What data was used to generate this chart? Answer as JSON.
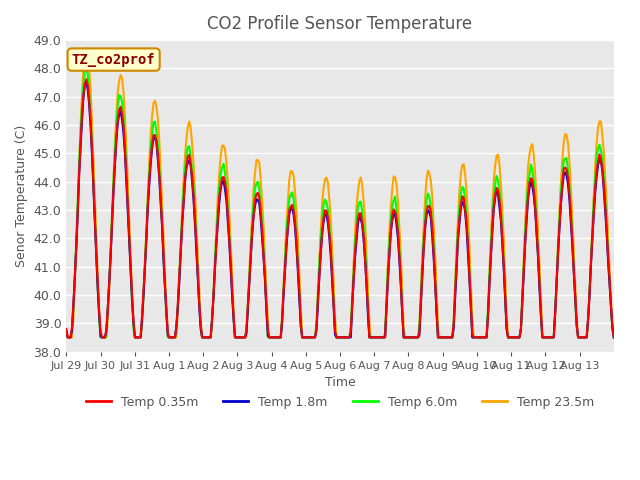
{
  "title": "CO2 Profile Sensor Temperature",
  "ylabel": "Senor Temperature (C)",
  "xlabel": "Time",
  "ylim": [
    38.0,
    49.0
  ],
  "yticks": [
    38.0,
    39.0,
    40.0,
    41.0,
    42.0,
    43.0,
    44.0,
    45.0,
    46.0,
    47.0,
    48.0,
    49.0
  ],
  "xtick_labels": [
    "Jul 29",
    "Jul 30",
    "Jul 31",
    "Aug 1",
    "Aug 2",
    "Aug 3",
    "Aug 4",
    "Aug 5",
    "Aug 6",
    "Aug 7",
    "Aug 8",
    "Aug 9",
    "Aug 10",
    "Aug 11",
    "Aug 12",
    "Aug 13"
  ],
  "colors": {
    "temp035": "#FF0000",
    "temp18": "#0000CC",
    "temp60": "#00FF00",
    "temp235": "#FFA500"
  },
  "legend_labels": [
    "Temp 0.35m",
    "Temp 1.8m",
    "Temp 6.0m",
    "Temp 23.5m"
  ],
  "annotation_text": "TZ_co2prof",
  "annotation_color": "#8B0000",
  "annotation_bg": "#FFFFCC",
  "annotation_border": "#CC8800",
  "bg_color": "#E8E8E8",
  "grid_color": "#FFFFFF",
  "title_color": "#555555",
  "axis_color": "#555555",
  "line_width": 1.5
}
